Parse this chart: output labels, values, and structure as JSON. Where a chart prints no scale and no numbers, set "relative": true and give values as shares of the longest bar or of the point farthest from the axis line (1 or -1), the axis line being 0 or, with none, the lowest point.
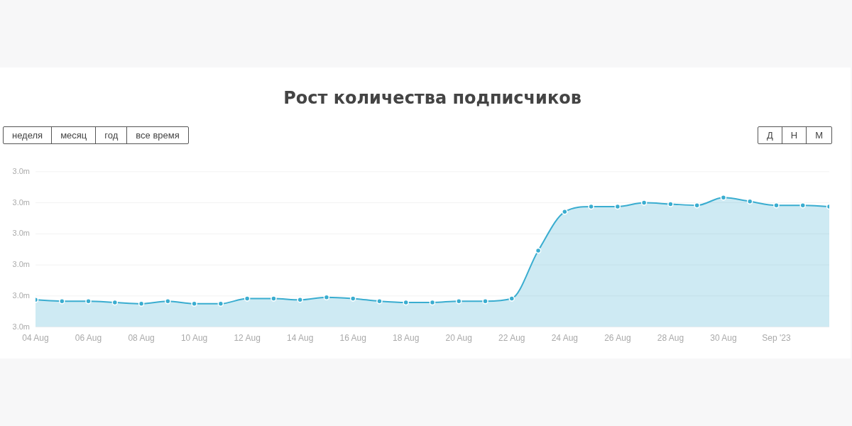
{
  "chart_data": {
    "type": "area",
    "title": "Рост количества подписчиков",
    "x": [
      "2023-08-04",
      "2023-08-05",
      "2023-08-06",
      "2023-08-07",
      "2023-08-08",
      "2023-08-09",
      "2023-08-10",
      "2023-08-11",
      "2023-08-12",
      "2023-08-13",
      "2023-08-14",
      "2023-08-15",
      "2023-08-16",
      "2023-08-17",
      "2023-08-18",
      "2023-08-19",
      "2023-08-20",
      "2023-08-21",
      "2023-08-22",
      "2023-08-23",
      "2023-08-24",
      "2023-08-25",
      "2023-08-26",
      "2023-08-27",
      "2023-08-28",
      "2023-08-29",
      "2023-08-30",
      "2023-08-31",
      "2023-09-01",
      "2023-09-02",
      "2023-09-03"
    ],
    "series": [
      {
        "color": "#3aadd0",
        "values": [
          0.21,
          0.2,
          0.2,
          0.19,
          0.18,
          0.2,
          0.18,
          0.18,
          0.22,
          0.22,
          0.21,
          0.23,
          0.22,
          0.2,
          0.19,
          0.19,
          0.2,
          0.2,
          0.22,
          0.59,
          0.89,
          0.93,
          0.93,
          0.96,
          0.95,
          0.94,
          1,
          0.97,
          0.94,
          0.94,
          0.93
        ]
      }
    ],
    "relative": true,
    "xlim": [
      "2023-08-04",
      "2023-09-03"
    ],
    "xticks": [
      {
        "value": "2023-08-04",
        "label": "04 Aug"
      },
      {
        "value": "2023-08-06",
        "label": "06 Aug"
      },
      {
        "value": "2023-08-08",
        "label": "08 Aug"
      },
      {
        "value": "2023-08-10",
        "label": "10 Aug"
      },
      {
        "value": "2023-08-12",
        "label": "12 Aug"
      },
      {
        "value": "2023-08-14",
        "label": "14 Aug"
      },
      {
        "value": "2023-08-16",
        "label": "16 Aug"
      },
      {
        "value": "2023-08-18",
        "label": "18 Aug"
      },
      {
        "value": "2023-08-20",
        "label": "20 Aug"
      },
      {
        "value": "2023-08-22",
        "label": "22 Aug"
      },
      {
        "value": "2023-08-24",
        "label": "24 Aug"
      },
      {
        "value": "2023-08-26",
        "label": "26 Aug"
      },
      {
        "value": "2023-08-28",
        "label": "28 Aug"
      },
      {
        "value": "2023-08-30",
        "label": "30 Aug"
      },
      {
        "value": "2023-09-01",
        "label": "Sep '23"
      }
    ],
    "grid": "y",
    "legend": false,
    "marker": "circle",
    "line_style": "solid",
    "annotations": [
      "неделя",
      "месяц",
      "год",
      "все время",
      "Д",
      "Н",
      "М",
      "3.0m",
      "3.0m",
      "3.0m",
      "3.0m",
      "3.0m",
      "3.0m"
    ]
  }
}
